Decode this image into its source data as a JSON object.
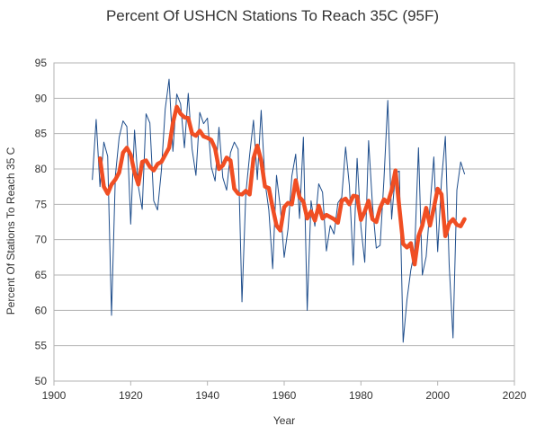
{
  "chart_data": {
    "type": "line",
    "title": "Percent Of USHCN Stations To Reach 35C (95F)",
    "xlabel": "Year",
    "ylabel": "Percent Of Stations To Reach 35 C",
    "xlim": [
      1900,
      2020
    ],
    "ylim": [
      50,
      95
    ],
    "xticks": [
      1900,
      1920,
      1940,
      1960,
      1980,
      2000,
      2020
    ],
    "yticks": [
      50,
      55,
      60,
      65,
      70,
      75,
      80,
      85,
      90,
      95
    ],
    "xtick_labels": [
      "1900",
      "1920",
      "1940",
      "1960",
      "1980",
      "2000",
      "2020"
    ],
    "ytick_labels": [
      "50",
      "55",
      "60",
      "65",
      "70",
      "75",
      "80",
      "85",
      "90",
      "95"
    ],
    "grid": "horizontal",
    "legend": "none",
    "series": [
      {
        "color": "#1f4e8c",
        "style": "thin",
        "x": [
          1910,
          1911,
          1912,
          1913,
          1914,
          1915,
          1916,
          1917,
          1918,
          1919,
          1920,
          1921,
          1922,
          1923,
          1924,
          1925,
          1926,
          1927,
          1928,
          1929,
          1930,
          1931,
          1932,
          1933,
          1934,
          1935,
          1936,
          1937,
          1938,
          1939,
          1940,
          1941,
          1942,
          1943,
          1944,
          1945,
          1946,
          1947,
          1948,
          1949,
          1950,
          1951,
          1952,
          1953,
          1954,
          1955,
          1956,
          1957,
          1958,
          1959,
          1960,
          1961,
          1962,
          1963,
          1964,
          1965,
          1966,
          1967,
          1968,
          1969,
          1970,
          1971,
          1972,
          1973,
          1974,
          1975,
          1976,
          1977,
          1978,
          1979,
          1980,
          1981,
          1982,
          1983,
          1984,
          1985,
          1986,
          1987,
          1988,
          1989,
          1990,
          1991,
          1992,
          1993,
          1994,
          1995,
          1996,
          1997,
          1998,
          1999,
          2000,
          2001,
          2002,
          2003,
          2004,
          2005,
          2006,
          2007
        ],
        "y": [
          78.5,
          87.0,
          77.5,
          83.8,
          81.8,
          59.3,
          79.0,
          84.5,
          86.8,
          86.0,
          72.2,
          85.5,
          77.5,
          74.3,
          87.8,
          86.5,
          75.5,
          74.2,
          79.8,
          88.5,
          92.7,
          82.5,
          90.6,
          89.2,
          83.0,
          90.7,
          82.8,
          79.1,
          88.0,
          86.4,
          87.2,
          80.3,
          78.3,
          85.9,
          78.8,
          77.0,
          82.3,
          83.8,
          82.8,
          61.2,
          76.5,
          82.0,
          86.9,
          78.5,
          88.3,
          78.2,
          74.2,
          65.9,
          79.1,
          74.5,
          67.5,
          71.5,
          79.0,
          82.1,
          73.0,
          84.5,
          60.0,
          75.5,
          71.9,
          77.9,
          76.7,
          68.4,
          72.0,
          70.8,
          75.2,
          76.0,
          83.1,
          77.6,
          66.4,
          81.5,
          71.8,
          66.8,
          84.0,
          75.0,
          68.8,
          69.2,
          78.5,
          89.7,
          72.9,
          79.5,
          79.7,
          55.5,
          61.5,
          65.7,
          68.4,
          83.0,
          65.0,
          67.6,
          74.7,
          81.7,
          68.3,
          78.4,
          84.6,
          66.4,
          56.1,
          77.0,
          81.0,
          79.3
        ]
      },
      {
        "color": "#f04e23",
        "style": "thick",
        "x": [
          1912,
          1913,
          1914,
          1915,
          1916,
          1917,
          1918,
          1919,
          1920,
          1921,
          1922,
          1923,
          1924,
          1925,
          1926,
          1927,
          1928,
          1929,
          1930,
          1931,
          1932,
          1933,
          1934,
          1935,
          1936,
          1937,
          1938,
          1939,
          1940,
          1941,
          1942,
          1943,
          1944,
          1945,
          1946,
          1947,
          1948,
          1949,
          1950,
          1951,
          1952,
          1953,
          1954,
          1955,
          1956,
          1957,
          1958,
          1959,
          1960,
          1961,
          1962,
          1963,
          1964,
          1965,
          1966,
          1967,
          1968,
          1969,
          1970,
          1971,
          1972,
          1973,
          1974,
          1975,
          1976,
          1977,
          1978,
          1979,
          1980,
          1981,
          1982,
          1983,
          1984,
          1985,
          1986,
          1987,
          1988,
          1989,
          1990,
          1991,
          1992,
          1993,
          1994,
          1995,
          1996,
          1997,
          1998,
          1999,
          2000,
          2001,
          2002,
          2003,
          2004,
          2005,
          2006,
          2007
        ],
        "y": [
          81.5,
          77.5,
          76.5,
          77.8,
          78.5,
          79.5,
          82.3,
          83.0,
          82.0,
          79.5,
          77.8,
          81.0,
          81.2,
          80.3,
          79.8,
          80.7,
          81.0,
          82.0,
          83.0,
          86.5,
          88.8,
          87.8,
          87.3,
          87.2,
          85.0,
          84.7,
          85.4,
          84.6,
          84.4,
          84.1,
          82.9,
          80.0,
          80.5,
          81.6,
          81.2,
          77.2,
          76.5,
          76.4,
          76.9,
          76.4,
          81.5,
          83.3,
          81.2,
          77.5,
          77.3,
          74.5,
          72.0,
          71.3,
          74.6,
          75.2,
          75.0,
          78.4,
          76.0,
          75.4,
          73.0,
          74.0,
          72.7,
          74.8,
          73.0,
          73.5,
          73.2,
          72.9,
          72.4,
          75.5,
          75.8,
          75.0,
          76.2,
          76.1,
          72.8,
          74.0,
          75.5,
          72.9,
          72.5,
          74.5,
          75.7,
          75.2,
          77.0,
          79.8,
          74.6,
          69.4,
          68.9,
          69.5,
          66.5,
          70.5,
          72.0,
          74.5,
          72.0,
          74.5,
          77.2,
          76.4,
          70.5,
          72.3,
          72.9,
          72.1,
          71.9,
          72.9
        ]
      }
    ]
  }
}
